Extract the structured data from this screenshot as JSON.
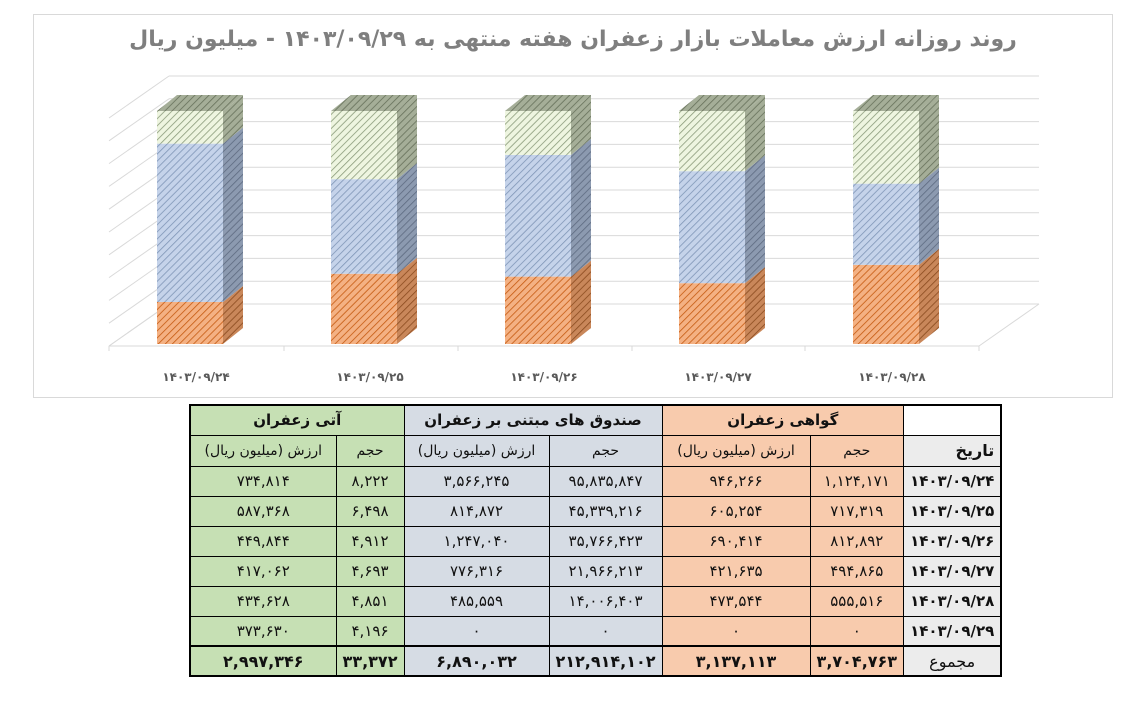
{
  "chart_data": {
    "type": "bar",
    "subtype": "stacked-100-3d",
    "title": "روند روزانه ارزش معاملات بازار زعفران هفته منتهی به ۱۴۰۳/۰۹/۲۹ - میلیون ریال",
    "categories": [
      "۱۴۰۳/۰۹/۲۴",
      "۱۴۰۳/۰۹/۲۵",
      "۱۴۰۳/۰۹/۲۶",
      "۱۴۰۳/۰۹/۲۷",
      "۱۴۰۳/۰۹/۲۸"
    ],
    "series": [
      {
        "name": "گواهی زعفران",
        "color": "#f4b183",
        "values": [
          946266,
          605254,
          690414,
          421635,
          473544
        ]
      },
      {
        "name": "صندوق های مبتنی بر زعفران",
        "color": "#b4c7e7",
        "values": [
          3566245,
          814872,
          1247040,
          776316,
          485559
        ]
      },
      {
        "name": "آتی زعفران",
        "color": "#e2efda",
        "values": [
          734814,
          587368,
          449844,
          417062,
          434628
        ]
      }
    ],
    "xlabel": "",
    "ylabel": "",
    "ylim": [
      0,
      100
    ],
    "grid": true,
    "legend": "none"
  },
  "chart": {
    "title": "روند روزانه ارزش معاملات بازار زعفران هفته منتهی به ۱۴۰۳/۰۹/۲۹ - میلیون ریال",
    "x_labels": [
      "۱۴۰۳/۰۹/۲۴",
      "۱۴۰۳/۰۹/۲۵",
      "۱۴۰۳/۰۹/۲۶",
      "۱۴۰۳/۰۹/۲۷",
      "۱۴۰۳/۰۹/۲۸"
    ]
  },
  "table": {
    "groups": {
      "date": "تاریخ",
      "certificate": "گواهی زعفران",
      "funds": "صندوق های مبتنی بر زعفران",
      "futures": "آتی زعفران"
    },
    "subheaders": {
      "volume": "حجم",
      "value": "ارزش (میلیون ریال)"
    },
    "rows": [
      {
        "date": "۱۴۰۳/۰۹/۲۴",
        "cert_vol": "۱,۱۲۴,۱۷۱",
        "cert_val": "۹۴۶,۲۶۶",
        "fund_vol": "۹۵,۸۳۵,۸۴۷",
        "fund_val": "۳,۵۶۶,۲۴۵",
        "fut_vol": "۸,۲۲۲",
        "fut_val": "۷۳۴,۸۱۴"
      },
      {
        "date": "۱۴۰۳/۰۹/۲۵",
        "cert_vol": "۷۱۷,۳۱۹",
        "cert_val": "۶۰۵,۲۵۴",
        "fund_vol": "۴۵,۳۳۹,۲۱۶",
        "fund_val": "۸۱۴,۸۷۲",
        "fut_vol": "۶,۴۹۸",
        "fut_val": "۵۸۷,۳۶۸"
      },
      {
        "date": "۱۴۰۳/۰۹/۲۶",
        "cert_vol": "۸۱۲,۸۹۲",
        "cert_val": "۶۹۰,۴۱۴",
        "fund_vol": "۳۵,۷۶۶,۴۲۳",
        "fund_val": "۱,۲۴۷,۰۴۰",
        "fut_vol": "۴,۹۱۲",
        "fut_val": "۴۴۹,۸۴۴"
      },
      {
        "date": "۱۴۰۳/۰۹/۲۷",
        "cert_vol": "۴۹۴,۸۶۵",
        "cert_val": "۴۲۱,۶۳۵",
        "fund_vol": "۲۱,۹۶۶,۲۱۳",
        "fund_val": "۷۷۶,۳۱۶",
        "fut_vol": "۴,۶۹۳",
        "fut_val": "۴۱۷,۰۶۲"
      },
      {
        "date": "۱۴۰۳/۰۹/۲۸",
        "cert_vol": "۵۵۵,۵۱۶",
        "cert_val": "۴۷۳,۵۴۴",
        "fund_vol": "۱۴,۰۰۶,۴۰۳",
        "fund_val": "۴۸۵,۵۵۹",
        "fut_vol": "۴,۸۵۱",
        "fut_val": "۴۳۴,۶۲۸"
      },
      {
        "date": "۱۴۰۳/۰۹/۲۹",
        "cert_vol": "۰",
        "cert_val": "۰",
        "fund_vol": "۰",
        "fund_val": "۰",
        "fut_vol": "۴,۱۹۶",
        "fut_val": "۳۷۳,۶۳۰"
      }
    ],
    "total": {
      "label": "مجموع",
      "cert_vol": "۳,۷۰۴,۷۶۳",
      "cert_val": "۳,۱۳۷,۱۱۳",
      "fund_vol": "۲۱۲,۹۱۴,۱۰۲",
      "fund_val": "۶,۸۹۰,۰۳۲",
      "fut_vol": "۳۳,۳۷۲",
      "fut_val": "۲,۹۹۷,۳۴۶"
    }
  }
}
